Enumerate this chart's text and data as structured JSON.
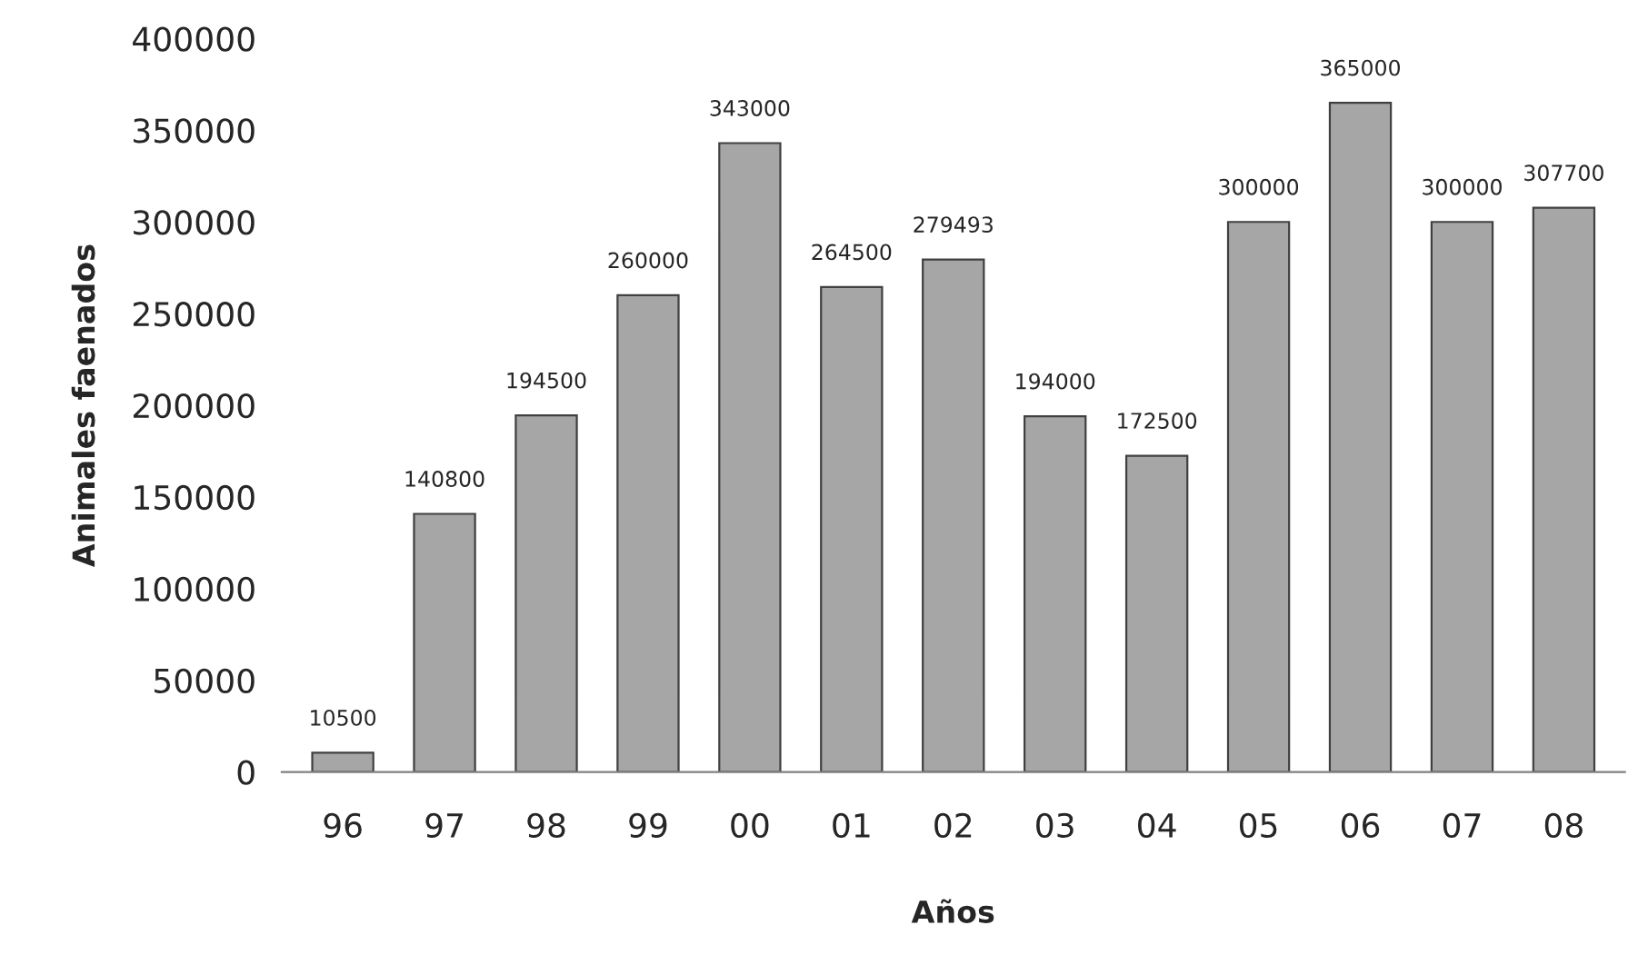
{
  "chart_data": {
    "type": "bar",
    "xlabel": "Años",
    "ylabel": "Animales faenados",
    "categories": [
      "96",
      "97",
      "98",
      "99",
      "00",
      "01",
      "02",
      "03",
      "04",
      "05",
      "06",
      "07",
      "08"
    ],
    "values": [
      10500,
      140800,
      194500,
      260000,
      343000,
      264500,
      279493,
      194000,
      172500,
      300000,
      365000,
      300000,
      307700
    ],
    "color": "#a6a6a6",
    "ylim": [
      0,
      400000
    ],
    "yticks": [
      0,
      50000,
      100000,
      150000,
      200000,
      250000,
      300000,
      350000,
      400000
    ],
    "data_labels": true,
    "grid": false,
    "legend": false
  }
}
